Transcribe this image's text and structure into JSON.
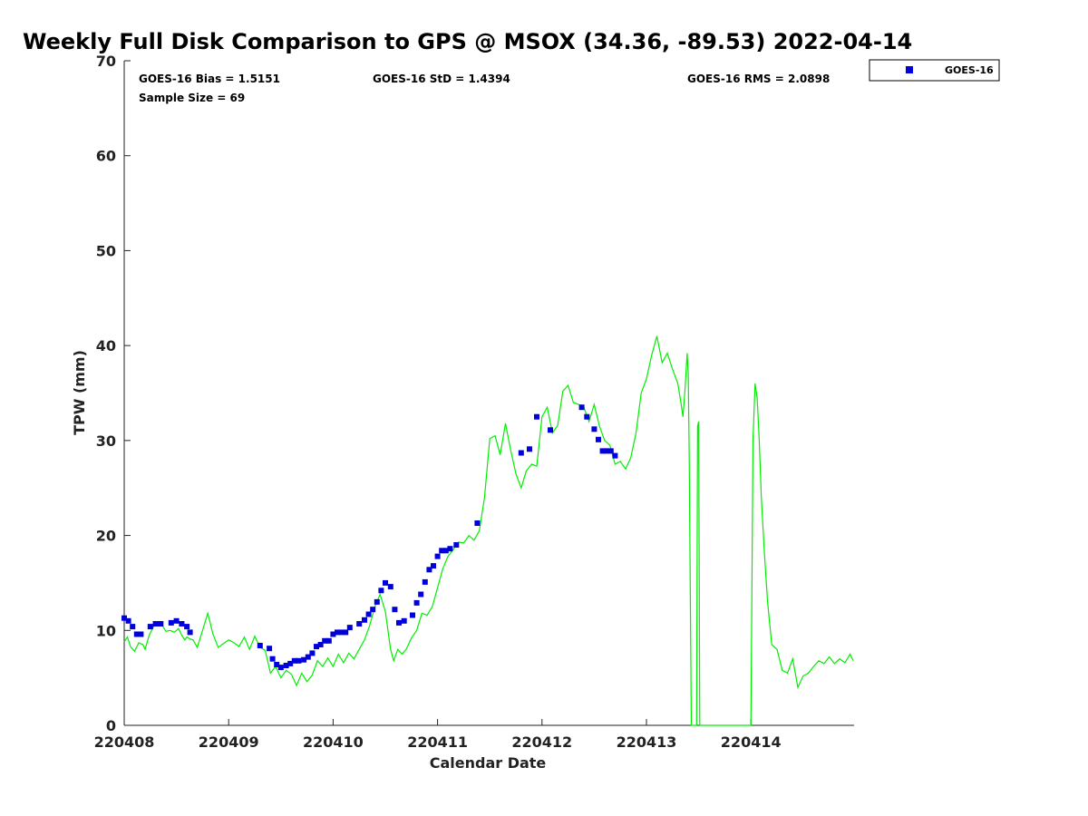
{
  "chart_data": {
    "type": "scatter",
    "title": "Weekly Full Disk Comparison to GPS @ MSOX (34.36, -89.53) 2022-04-14",
    "xlabel": "Calendar Date",
    "ylabel": "TPW (mm)",
    "xlim": [
      220408,
      220415
    ],
    "ylim": [
      0,
      70
    ],
    "yticks": [
      0,
      10,
      20,
      30,
      40,
      50,
      60,
      70
    ],
    "xticks": [
      220408,
      220409,
      220410,
      220411,
      220412,
      220413,
      220414
    ],
    "xtick_labels": [
      "220408",
      "220409",
      "220410",
      "220411",
      "220412",
      "220413",
      "220414"
    ],
    "grid": false,
    "legend_position": "top-right outside",
    "stats": {
      "bias": "GOES-16 Bias = 1.5151",
      "std": "GOES-16 StD = 1.4394",
      "rms": "GOES-16 RMS = 2.0898",
      "sample": "Sample Size = 69"
    },
    "colors": {
      "goes16": "#0000dd",
      "gps": "#00ee00"
    },
    "series": [
      {
        "name": "GOES-16",
        "marker": "square",
        "x": [
          220408.0,
          220408.04,
          220408.08,
          220408.12,
          220408.16,
          220408.25,
          220408.3,
          220408.35,
          220408.45,
          220408.5,
          220408.55,
          220408.6,
          220408.63,
          220409.3,
          220409.39,
          220409.42,
          220409.46,
          220409.5,
          220409.55,
          220409.59,
          220409.63,
          220409.67,
          220409.72,
          220409.76,
          220409.8,
          220409.84,
          220409.88,
          220409.92,
          220409.96,
          220410.0,
          220410.04,
          220410.08,
          220410.12,
          220410.16,
          220410.25,
          220410.3,
          220410.34,
          220410.38,
          220410.42,
          220410.46,
          220410.5,
          220410.55,
          220410.59,
          220410.63,
          220410.68,
          220410.76,
          220410.8,
          220410.84,
          220410.88,
          220410.92,
          220410.96,
          220411.0,
          220411.04,
          220411.08,
          220411.12,
          220411.18,
          220411.38,
          220411.8,
          220411.88,
          220411.95,
          220412.08,
          220412.38,
          220412.43,
          220412.5,
          220412.54,
          220412.58,
          220412.62,
          220412.66,
          220412.7
        ],
        "values": [
          11.3,
          11.0,
          10.4,
          9.6,
          9.6,
          10.4,
          10.7,
          10.7,
          10.8,
          11.0,
          10.7,
          10.4,
          9.8,
          8.4,
          8.1,
          7.0,
          6.4,
          6.1,
          6.3,
          6.5,
          6.8,
          6.8,
          6.9,
          7.2,
          7.6,
          8.3,
          8.5,
          8.9,
          8.9,
          9.6,
          9.8,
          9.8,
          9.8,
          10.3,
          10.7,
          11.1,
          11.7,
          12.2,
          13.0,
          14.2,
          15.0,
          14.6,
          12.2,
          10.8,
          11.0,
          11.6,
          12.9,
          13.8,
          15.1,
          16.4,
          16.8,
          17.8,
          18.4,
          18.4,
          18.6,
          19.0,
          21.3,
          28.7,
          29.1,
          32.5,
          31.1,
          33.5,
          32.5,
          31.2,
          30.1,
          28.9,
          28.9,
          28.9,
          28.4
        ]
      },
      {
        "name": "",
        "marker": "line",
        "x": [
          220408.0,
          220408.03,
          220408.06,
          220408.1,
          220408.14,
          220408.18,
          220408.2,
          220408.24,
          220408.28,
          220408.32,
          220408.36,
          220408.4,
          220408.44,
          220408.48,
          220408.52,
          220408.55,
          220408.58,
          220408.6,
          220408.63,
          220408.66,
          220408.7,
          220408.75,
          220408.8,
          220408.85,
          220408.9,
          220408.95,
          220409.0,
          220409.05,
          220409.1,
          220409.15,
          220409.2,
          220409.25,
          220409.3,
          220409.35,
          220409.4,
          220409.45,
          220409.5,
          220409.55,
          220409.6,
          220409.65,
          220409.7,
          220409.75,
          220409.8,
          220409.85,
          220409.9,
          220409.95,
          220410.0,
          220410.05,
          220410.1,
          220410.15,
          220410.2,
          220410.25,
          220410.3,
          220410.35,
          220410.4,
          220410.45,
          220410.5,
          220410.55,
          220410.58,
          220410.62,
          220410.66,
          220410.7,
          220410.75,
          220410.8,
          220410.85,
          220410.9,
          220410.95,
          220411.0,
          220411.05,
          220411.1,
          220411.15,
          220411.2,
          220411.25,
          220411.3,
          220411.35,
          220411.4,
          220411.45,
          220411.5,
          220411.55,
          220411.6,
          220411.65,
          220411.7,
          220411.75,
          220411.8,
          220411.85,
          220411.9,
          220411.95,
          220412.0,
          220412.05,
          220412.1,
          220412.15,
          220412.2,
          220412.25,
          220412.3,
          220412.35,
          220412.4,
          220412.45,
          220412.5,
          220412.55,
          220412.6,
          220412.65,
          220412.7,
          220412.75,
          220412.8,
          220412.85,
          220412.9,
          220412.95,
          220413.0,
          220413.05,
          220413.1,
          220413.15,
          220413.2,
          220413.25,
          220413.3,
          220413.33,
          220413.35,
          220413.37,
          220413.39,
          220413.4,
          220413.41,
          220413.43,
          220413.45,
          220413.47,
          220413.48,
          220413.49,
          220413.5,
          220413.51,
          220413.53,
          220413.55,
          220413.6,
          220413.7,
          220413.8,
          220413.9,
          220414.0,
          220414.02,
          220414.04,
          220414.06,
          220414.08,
          220414.1,
          220414.13,
          220414.16,
          220414.2,
          220414.25,
          220414.3,
          220414.35,
          220414.4,
          220414.45,
          220414.5,
          220414.55,
          220414.6,
          220414.65,
          220414.7,
          220414.75,
          220414.8,
          220414.85,
          220414.9,
          220414.95,
          220414.98
        ],
        "values": [
          8.8,
          9.3,
          8.3,
          7.8,
          8.7,
          8.5,
          8.0,
          9.5,
          10.4,
          10.9,
          10.6,
          9.9,
          10.0,
          9.8,
          10.2,
          9.5,
          9.0,
          9.3,
          9.1,
          9.0,
          8.2,
          10.0,
          11.8,
          9.6,
          8.2,
          8.6,
          9.0,
          8.7,
          8.3,
          9.3,
          8.0,
          9.4,
          8.2,
          7.9,
          5.5,
          6.2,
          5.0,
          5.8,
          5.4,
          4.2,
          5.5,
          4.6,
          5.3,
          6.8,
          6.2,
          7.1,
          6.2,
          7.5,
          6.6,
          7.6,
          7.0,
          8.0,
          9.0,
          10.5,
          12.5,
          13.8,
          12.0,
          8.0,
          6.8,
          8.0,
          7.5,
          8.0,
          9.2,
          10.0,
          11.8,
          11.6,
          12.5,
          14.5,
          16.5,
          17.8,
          18.5,
          19.3,
          19.2,
          20.0,
          19.5,
          20.5,
          24.0,
          30.2,
          30.5,
          28.5,
          31.8,
          29.0,
          26.5,
          25.0,
          26.8,
          27.5,
          27.3,
          32.5,
          33.5,
          30.8,
          31.6,
          35.2,
          35.8,
          34.0,
          33.8,
          33.5,
          32.0,
          33.8,
          31.5,
          30.0,
          29.5,
          27.5,
          27.8,
          27.0,
          28.2,
          30.8,
          35.0,
          36.5,
          39.0,
          41.0,
          38.2,
          39.2,
          37.5,
          36.0,
          34.0,
          32.5,
          35.5,
          39.2,
          37.0,
          28.0,
          0.0,
          0.0,
          0.0,
          0.0,
          31.5,
          32.0,
          0.0,
          0.0,
          0.0,
          0.0,
          0.0,
          0.0,
          0.0,
          0.0,
          30.0,
          36.0,
          34.5,
          30.0,
          24.0,
          18.0,
          13.0,
          8.5,
          8.0,
          5.8,
          5.5,
          7.0,
          4.0,
          5.2,
          5.5,
          6.2,
          6.8,
          6.5,
          7.2,
          6.5,
          7.0,
          6.6,
          7.5,
          6.8
        ]
      }
    ]
  }
}
